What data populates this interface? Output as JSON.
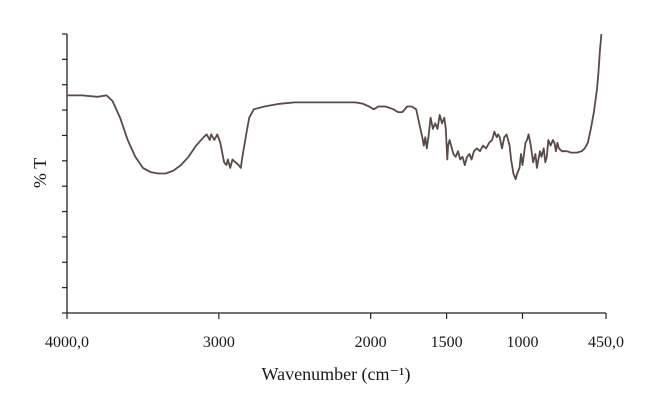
{
  "chart_data": {
    "type": "line",
    "title": "",
    "xlabel": "Wavenumber (cm⁻¹)",
    "ylabel": "% T",
    "x_reversed": true,
    "xlim": [
      4000,
      450
    ],
    "x_ticks": [
      {
        "value": 4000,
        "label": "4000,0"
      },
      {
        "value": 3000,
        "label": "3000"
      },
      {
        "value": 2000,
        "label": "2000"
      },
      {
        "value": 1500,
        "label": "1500"
      },
      {
        "value": 1000,
        "label": "1000"
      },
      {
        "value": 450,
        "label": "450,0"
      }
    ],
    "ylim": [
      0,
      100
    ],
    "y_tick_count": 12,
    "y_tick_labels_shown": false,
    "grid": false,
    "series": [
      {
        "color": "#5a4a46",
        "points": [
          [
            4000,
            78
          ],
          [
            3900,
            78
          ],
          [
            3800,
            77.5
          ],
          [
            3740,
            78
          ],
          [
            3700,
            76
          ],
          [
            3650,
            70
          ],
          [
            3600,
            62
          ],
          [
            3550,
            56
          ],
          [
            3500,
            52
          ],
          [
            3450,
            50.5
          ],
          [
            3400,
            50
          ],
          [
            3350,
            50
          ],
          [
            3300,
            51
          ],
          [
            3250,
            53
          ],
          [
            3200,
            56
          ],
          [
            3150,
            60
          ],
          [
            3100,
            63
          ],
          [
            3080,
            64
          ],
          [
            3060,
            62
          ],
          [
            3050,
            64
          ],
          [
            3030,
            62
          ],
          [
            3010,
            64
          ],
          [
            2990,
            61
          ],
          [
            2965,
            54
          ],
          [
            2950,
            53
          ],
          [
            2940,
            55
          ],
          [
            2925,
            52
          ],
          [
            2910,
            55
          ],
          [
            2890,
            54
          ],
          [
            2870,
            53
          ],
          [
            2855,
            52
          ],
          [
            2845,
            56
          ],
          [
            2820,
            64
          ],
          [
            2800,
            70
          ],
          [
            2770,
            73
          ],
          [
            2700,
            74
          ],
          [
            2600,
            75
          ],
          [
            2500,
            75.5
          ],
          [
            2400,
            75.5
          ],
          [
            2300,
            75.5
          ],
          [
            2200,
            75.5
          ],
          [
            2100,
            75.5
          ],
          [
            2050,
            75
          ],
          [
            2010,
            74
          ],
          [
            1980,
            73
          ],
          [
            1950,
            74
          ],
          [
            1900,
            74
          ],
          [
            1850,
            73
          ],
          [
            1820,
            72
          ],
          [
            1790,
            72
          ],
          [
            1760,
            74
          ],
          [
            1730,
            74
          ],
          [
            1700,
            73
          ],
          [
            1680,
            68
          ],
          [
            1660,
            63
          ],
          [
            1650,
            60
          ],
          [
            1640,
            63
          ],
          [
            1630,
            59
          ],
          [
            1620,
            63
          ],
          [
            1605,
            70
          ],
          [
            1590,
            66
          ],
          [
            1575,
            68
          ],
          [
            1560,
            66
          ],
          [
            1545,
            71
          ],
          [
            1530,
            68
          ],
          [
            1515,
            70
          ],
          [
            1505,
            66
          ],
          [
            1495,
            55
          ],
          [
            1490,
            60
          ],
          [
            1480,
            62
          ],
          [
            1470,
            60
          ],
          [
            1455,
            57
          ],
          [
            1440,
            56
          ],
          [
            1425,
            58
          ],
          [
            1410,
            55
          ],
          [
            1395,
            56
          ],
          [
            1380,
            53
          ],
          [
            1365,
            56
          ],
          [
            1350,
            57
          ],
          [
            1335,
            55
          ],
          [
            1320,
            58
          ],
          [
            1300,
            59
          ],
          [
            1280,
            58
          ],
          [
            1260,
            60
          ],
          [
            1240,
            59
          ],
          [
            1220,
            61
          ],
          [
            1200,
            62
          ],
          [
            1185,
            65
          ],
          [
            1170,
            63
          ],
          [
            1160,
            64
          ],
          [
            1150,
            63
          ],
          [
            1135,
            59
          ],
          [
            1120,
            63
          ],
          [
            1105,
            64
          ],
          [
            1095,
            62
          ],
          [
            1085,
            60
          ],
          [
            1075,
            55
          ],
          [
            1060,
            50
          ],
          [
            1045,
            48
          ],
          [
            1035,
            50
          ],
          [
            1020,
            52
          ],
          [
            1010,
            57
          ],
          [
            1000,
            53
          ],
          [
            990,
            57
          ],
          [
            980,
            61
          ],
          [
            970,
            62
          ],
          [
            960,
            64
          ],
          [
            945,
            60
          ],
          [
            930,
            54
          ],
          [
            915,
            57
          ],
          [
            905,
            52
          ],
          [
            895,
            55
          ],
          [
            885,
            58
          ],
          [
            875,
            56
          ],
          [
            860,
            59
          ],
          [
            850,
            54
          ],
          [
            840,
            56
          ],
          [
            830,
            62
          ],
          [
            815,
            60
          ],
          [
            800,
            62
          ],
          [
            790,
            61
          ],
          [
            780,
            58
          ],
          [
            770,
            61
          ],
          [
            760,
            59
          ],
          [
            740,
            58
          ],
          [
            710,
            58
          ],
          [
            680,
            57.5
          ],
          [
            640,
            57.5
          ],
          [
            610,
            58
          ],
          [
            590,
            59
          ],
          [
            570,
            61
          ],
          [
            550,
            66
          ],
          [
            530,
            72
          ],
          [
            510,
            80
          ],
          [
            500,
            86
          ],
          [
            490,
            94
          ],
          [
            480,
            100
          ]
        ]
      }
    ]
  }
}
